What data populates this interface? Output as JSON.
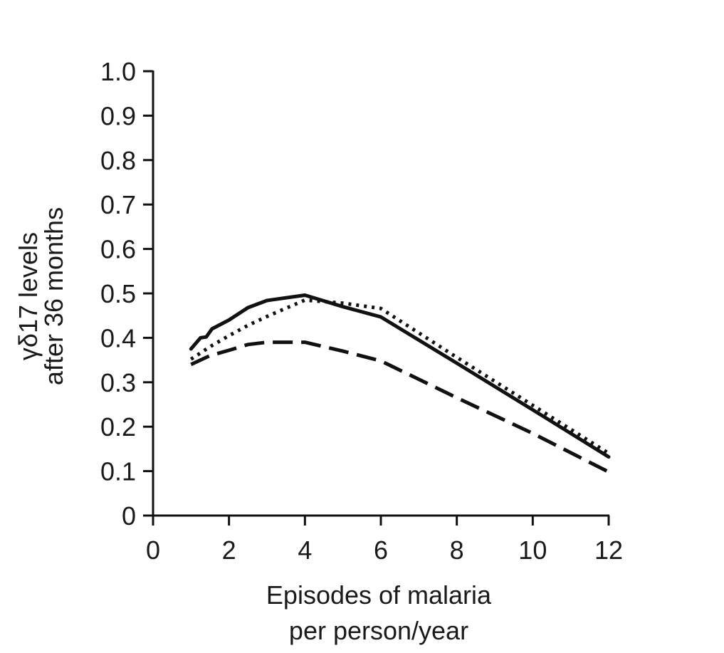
{
  "chart_data": {
    "type": "line",
    "xlabel": [
      "Episodes of malaria",
      "per person/year"
    ],
    "ylabel": [
      "γδ17 levels",
      "after 36 months"
    ],
    "xlim": [
      0,
      12
    ],
    "ylim": [
      0,
      1.0
    ],
    "xticks": [
      0,
      2,
      4,
      6,
      8,
      10,
      12
    ],
    "xtick_labels": [
      "0",
      "2",
      "4",
      "6",
      "8",
      "10",
      "12"
    ],
    "yticks": [
      0,
      0.1,
      0.2,
      0.3,
      0.4,
      0.5,
      0.6,
      0.7,
      0.8,
      0.9,
      1.0
    ],
    "ytick_labels": [
      "0",
      "0.1",
      "0.2",
      "0.3",
      "0.4",
      "0.5",
      "0.6",
      "0.7",
      "0.8",
      "0.9",
      "1.0"
    ],
    "grid": false,
    "series": [
      {
        "style": "solid",
        "color": "#111111",
        "x": [
          1,
          1.25,
          1.4,
          1.55,
          2,
          2.5,
          3,
          4,
          5,
          6,
          8,
          10,
          12
        ],
        "y": [
          0.375,
          0.4,
          0.402,
          0.42,
          0.44,
          0.468,
          0.484,
          0.496,
          0.47,
          0.447,
          0.343,
          0.238,
          0.132
        ]
      },
      {
        "style": "dotted",
        "color": "#111111",
        "x": [
          1,
          1.5,
          2,
          2.5,
          3,
          4,
          5,
          6,
          8,
          10,
          12
        ],
        "y": [
          0.352,
          0.38,
          0.405,
          0.428,
          0.448,
          0.485,
          0.478,
          0.466,
          0.356,
          0.248,
          0.14
        ]
      },
      {
        "style": "dashed",
        "color": "#111111",
        "x": [
          1,
          1.5,
          2,
          2.5,
          3,
          4,
          5,
          6,
          8,
          10,
          12
        ],
        "y": [
          0.34,
          0.36,
          0.372,
          0.385,
          0.39,
          0.39,
          0.37,
          0.348,
          0.265,
          0.185,
          0.098
        ]
      }
    ]
  }
}
